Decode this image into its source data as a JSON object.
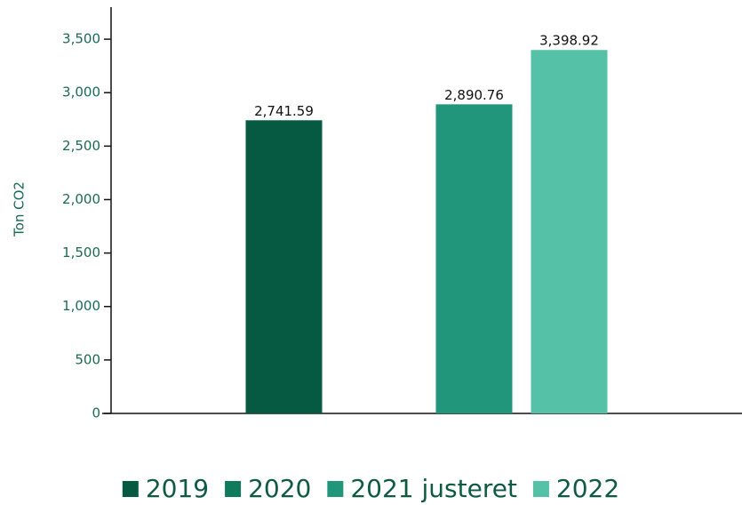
{
  "chart_data": {
    "type": "bar",
    "y_label": "Ton CO2",
    "categories": [
      null
    ],
    "series": [
      {
        "name": "2019",
        "color": "#065a41",
        "values": [
          2741.59
        ],
        "value_labels": [
          "2,741.59"
        ]
      },
      {
        "name": "2020",
        "color": "#0f7a5c",
        "values": [
          null
        ]
      },
      {
        "name": "2021 justeret",
        "color": "#22967a",
        "values": [
          2890.76
        ],
        "value_labels": [
          "2,890.76"
        ]
      },
      {
        "name": "2022",
        "color": "#55c2a8",
        "values": [
          3398.92
        ],
        "value_labels": [
          "3,398.92"
        ]
      }
    ],
    "ylim": [
      0,
      3800
    ],
    "yticks": [
      0,
      500,
      {
        "value": 1000,
        "label": "1,000"
      },
      {
        "value": 1500,
        "label": "1,500"
      },
      {
        "value": 2000,
        "label": "2,000"
      },
      {
        "value": 2500,
        "label": "2,500"
      },
      {
        "value": 3000,
        "label": "3,000"
      },
      {
        "value": 3500,
        "label": "3,500"
      }
    ],
    "grid": false,
    "legend": "bottom"
  }
}
